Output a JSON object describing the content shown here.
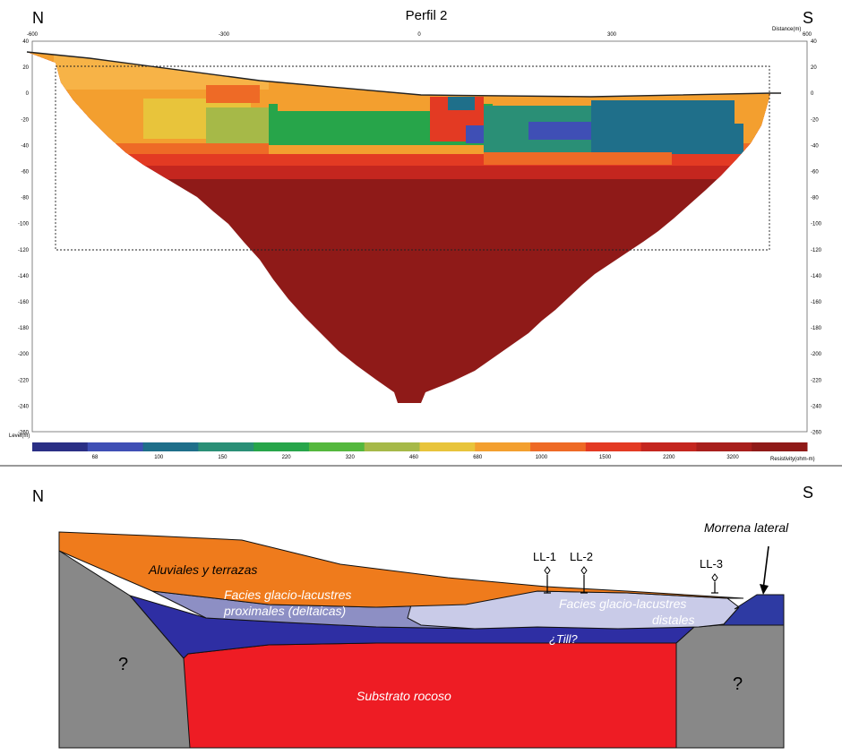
{
  "top_panel": {
    "north_label": "N",
    "south_label": "S",
    "title": "Perfil 2",
    "distance_axis_label": "Distance(m)",
    "level_axis_label": "Level(m)",
    "x_ticks": [
      "-600",
      "-300",
      "0",
      "300",
      "600"
    ],
    "y_ticks": [
      "40",
      "20",
      "0",
      "-20",
      "-40",
      "-60",
      "-80",
      "-100",
      "-120",
      "-140",
      "-160",
      "-180",
      "-200",
      "-220",
      "-240",
      "-260"
    ],
    "colorbar": {
      "label": "Resistivity(ohm-m)",
      "tick_labels": [
        "68",
        "100",
        "150",
        "220",
        "320",
        "460",
        "680",
        "1000",
        "1500",
        "2200",
        "3200"
      ],
      "colors": [
        "#2a2f85",
        "#3f4fb5",
        "#1f6f8a",
        "#2a8f76",
        "#27a54a",
        "#54b83d",
        "#a6b948",
        "#e8c43b",
        "#f39f2f",
        "#ee6a26",
        "#e33a23",
        "#c4261f",
        "#a81f1c",
        "#8f1a18"
      ]
    }
  },
  "bottom_panel": {
    "north_label": "N",
    "south_label": "S",
    "units": {
      "aluviales": "Aluviales y terrazas",
      "facies_proximal_1": "Facies glacio-lacustres",
      "facies_proximal_2": "proximales (deltaicas)",
      "facies_distal_1": "Facies glacio-lacustres",
      "facies_distal_2": "distales",
      "till": "¿Till?",
      "substrato": "Substrato rocoso",
      "morrena": "Morrena lateral",
      "unknown_left": "?",
      "unknown_right": "?"
    },
    "boreholes": [
      "LL-1",
      "LL-2",
      "LL-3"
    ],
    "colors": {
      "aluviales": "#ef7b1c",
      "proximal": "#8d8fc4",
      "distal": "#c9cbe8",
      "till": "#2e2ea3",
      "substrato": "#ee1c24",
      "rock": "#888888",
      "morrena": "#2e3aa3"
    }
  }
}
